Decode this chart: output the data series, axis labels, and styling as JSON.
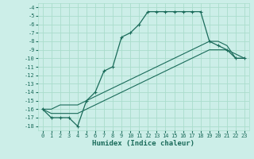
{
  "xlabel": "Humidex (Indice chaleur)",
  "background_color": "#cceee8",
  "grid_color": "#aaddcc",
  "line_color": "#1a6b5a",
  "x_hours": [
    0,
    1,
    2,
    3,
    4,
    5,
    6,
    7,
    8,
    9,
    10,
    11,
    12,
    13,
    14,
    15,
    16,
    17,
    18,
    19,
    20,
    21,
    22,
    23
  ],
  "humidex": [
    -16,
    -17,
    -17,
    -17,
    -18,
    -15,
    -14,
    -11.5,
    -11,
    -7.5,
    -7,
    -6,
    -4.5,
    -4.5,
    -4.5,
    -4.5,
    -4.5,
    -4.5,
    -4.5,
    -8,
    -8.5,
    -9,
    -10,
    -10
  ],
  "temp_min": [
    -16,
    -16.5,
    -16.5,
    -16.5,
    -16.5,
    -16,
    -15.5,
    -15,
    -14.5,
    -14,
    -13.5,
    -13,
    -12.5,
    -12,
    -11.5,
    -11,
    -10.5,
    -10,
    -9.5,
    -9,
    -9,
    -9,
    -9.5,
    -10
  ],
  "temp_max": [
    -16,
    -16,
    -15.5,
    -15.5,
    -15.5,
    -15,
    -14.5,
    -14,
    -13.5,
    -13,
    -12.5,
    -12,
    -11.5,
    -11,
    -10.5,
    -10,
    -9.5,
    -9,
    -8.5,
    -8,
    -8,
    -8.5,
    -10,
    -10
  ],
  "ylim": [
    -18.5,
    -3.5
  ],
  "xlim": [
    -0.5,
    23.5
  ],
  "yticks": [
    -18,
    -17,
    -16,
    -15,
    -14,
    -13,
    -12,
    -11,
    -10,
    -9,
    -8,
    -7,
    -6,
    -5,
    -4
  ],
  "xticks": [
    0,
    1,
    2,
    3,
    4,
    5,
    6,
    7,
    8,
    9,
    10,
    11,
    12,
    13,
    14,
    15,
    16,
    17,
    18,
    19,
    20,
    21,
    22,
    23
  ],
  "ylabel_fontsize": 5.5,
  "xlabel_fontsize": 6.5,
  "tick_fontsize": 5.0
}
